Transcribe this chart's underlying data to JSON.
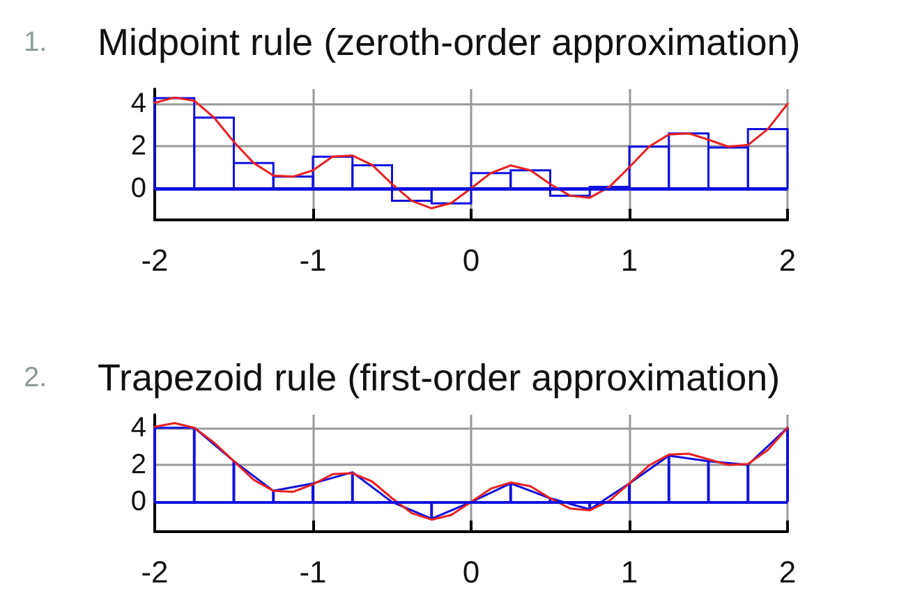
{
  "chart_data": [
    {
      "type": "histogram",
      "title": "1. Midpoint rule (zeroth-order approximation)",
      "xlim": [
        -2,
        2
      ],
      "xticks": [
        -2,
        -1,
        0,
        1,
        2
      ],
      "ylim": [
        -1.5,
        4.7
      ],
      "yticks": [
        0,
        2,
        4
      ],
      "grid": true,
      "marker": "none",
      "line_style": "solid",
      "ref_lines": [
        {
          "axis": "y",
          "value": 0,
          "color": "#1010e0"
        }
      ],
      "series": [
        {
          "color": "#1010e0",
          "bins": [
            -2,
            -1.75,
            -1.5,
            -1.25,
            -1,
            -0.75,
            -0.5,
            -0.25,
            0,
            0.25,
            0.5,
            0.75,
            1,
            1.25,
            1.5,
            1.75,
            2
          ],
          "values": [
            4.27,
            3.35,
            1.2,
            0.55,
            1.49,
            1.09,
            -0.59,
            -0.72,
            0.72,
            0.85,
            -0.35,
            0.07,
            1.97,
            2.6,
            1.93,
            2.8
          ]
        },
        {
          "type": "line",
          "color": "#e82020",
          "x": [
            -2,
            -1.875,
            -1.75,
            -1.625,
            -1.5,
            -1.375,
            -1.25,
            -1.125,
            -1,
            -0.875,
            -0.75,
            -0.625,
            -0.5,
            -0.375,
            -0.25,
            -0.125,
            0,
            0.125,
            0.25,
            0.375,
            0.5,
            0.625,
            0.75,
            0.875,
            1,
            1.125,
            1.25,
            1.375,
            1.5,
            1.625,
            1.75,
            1.875,
            2
          ],
          "values": [
            4.05,
            4.3,
            4.15,
            3.35,
            2.2,
            1.2,
            0.6,
            0.55,
            0.85,
            1.5,
            1.55,
            1.1,
            0.2,
            -0.6,
            -0.95,
            -0.7,
            0,
            0.72,
            1.08,
            0.85,
            0.2,
            -0.35,
            -0.45,
            0.07,
            1.0,
            1.97,
            2.55,
            2.6,
            2.3,
            1.97,
            2.05,
            2.8,
            4.0
          ]
        }
      ]
    },
    {
      "type": "line",
      "title": "2. Trapezoid rule (first-order approximation)",
      "xlim": [
        -2,
        2
      ],
      "xticks": [
        -2,
        -1,
        0,
        1,
        2
      ],
      "ylim": [
        -1.6,
        4.7
      ],
      "yticks": [
        0,
        2,
        4
      ],
      "grid": true,
      "marker": "none",
      "line_style": "solid",
      "ref_lines": [
        {
          "axis": "y",
          "value": 0,
          "color": "#1010e0"
        }
      ],
      "series": [
        {
          "type": "bar",
          "color": "#1010e0",
          "x": [
            -2,
            -1.75,
            -1.5,
            -1.25,
            -1,
            -0.75,
            -0.5,
            -0.25,
            0,
            0.25,
            0.5,
            0.75,
            1,
            1.25,
            1.5,
            1.75,
            2
          ],
          "values": [
            4.0,
            4.0,
            2.2,
            0.6,
            1.0,
            1.6,
            0,
            -0.9,
            0,
            1.0,
            0.2,
            -0.4,
            1.0,
            2.5,
            2.2,
            2.0,
            4.0
          ]
        },
        {
          "color": "#1010e0",
          "x": [
            -2,
            -1.75,
            -1.5,
            -1.25,
            -1,
            -0.75,
            -0.5,
            -0.25,
            0,
            0.25,
            0.5,
            0.75,
            1,
            1.25,
            1.5,
            1.75,
            2
          ],
          "values": [
            4.0,
            4.0,
            2.2,
            0.6,
            1.0,
            1.6,
            0,
            -0.9,
            0,
            1.0,
            0.2,
            -0.4,
            1.0,
            2.5,
            2.2,
            2.0,
            4.0
          ]
        },
        {
          "color": "#e82020",
          "x": [
            -2,
            -1.875,
            -1.75,
            -1.625,
            -1.5,
            -1.375,
            -1.25,
            -1.125,
            -1,
            -0.875,
            -0.75,
            -0.625,
            -0.5,
            -0.375,
            -0.25,
            -0.125,
            0,
            0.125,
            0.25,
            0.375,
            0.5,
            0.625,
            0.75,
            0.875,
            1,
            1.125,
            1.25,
            1.375,
            1.5,
            1.625,
            1.75,
            1.875,
            2
          ],
          "values": [
            4.05,
            4.25,
            4.0,
            3.2,
            2.2,
            1.2,
            0.6,
            0.55,
            0.95,
            1.5,
            1.55,
            1.1,
            0.2,
            -0.6,
            -0.95,
            -0.7,
            0,
            0.72,
            1.05,
            0.85,
            0.2,
            -0.35,
            -0.45,
            0.07,
            1.0,
            1.97,
            2.55,
            2.6,
            2.3,
            2.0,
            2.05,
            2.8,
            4.0
          ]
        }
      ]
    }
  ]
}
